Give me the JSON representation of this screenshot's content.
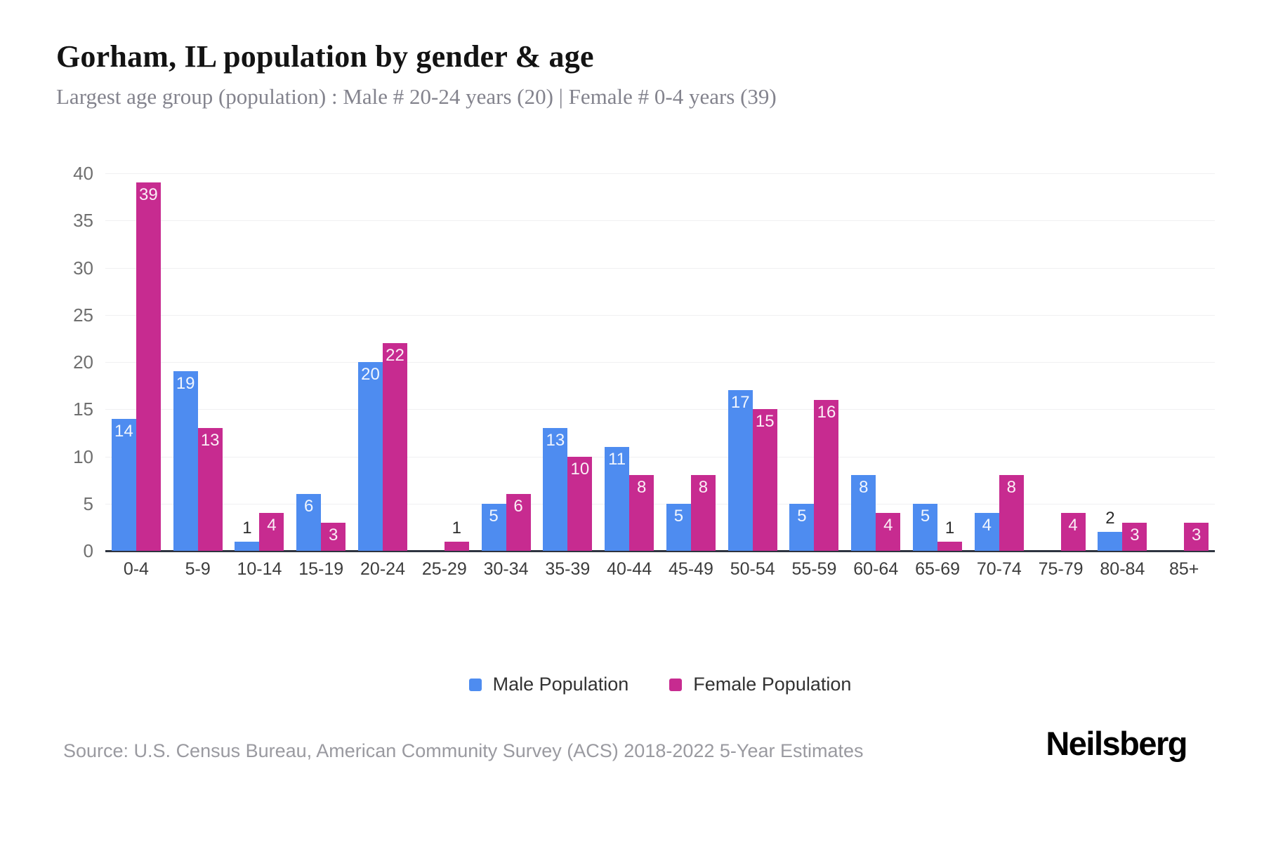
{
  "title": "Gorham, IL population by gender & age",
  "subtitle": "Largest age group (population) : Male # 20-24 years (20) | Female # 0-4 years (39)",
  "source": "Source: U.S. Census Bureau, American Community Survey (ACS) 2018-2022 5-Year Estimates",
  "brand": "Neilsberg",
  "colors": {
    "male": "#4e8cf0",
    "female": "#c72b90",
    "gridline": "#f0f0f2",
    "axis_line": "#2e3440"
  },
  "legend": {
    "items": [
      {
        "label": "Male Population",
        "color": "#4e8cf0"
      },
      {
        "label": "Female Population",
        "color": "#c72b90"
      }
    ]
  },
  "chart_data": {
    "type": "bar",
    "title": "Gorham, IL population by gender & age",
    "subtitle": "Largest age group (population) : Male # 20-24 years (20) | Female # 0-4 years (39)",
    "categories": [
      "0-4",
      "5-9",
      "10-14",
      "15-19",
      "20-24",
      "25-29",
      "30-34",
      "35-39",
      "40-44",
      "45-49",
      "50-54",
      "55-59",
      "60-64",
      "65-69",
      "70-74",
      "75-79",
      "80-84",
      "85+"
    ],
    "series": [
      {
        "name": "Male Population",
        "color": "#4e8cf0",
        "values": [
          14,
          19,
          1,
          6,
          20,
          0,
          5,
          13,
          11,
          5,
          17,
          5,
          8,
          5,
          4,
          0,
          2,
          0
        ]
      },
      {
        "name": "Female Population",
        "color": "#c72b90",
        "values": [
          39,
          13,
          4,
          3,
          22,
          1,
          6,
          10,
          8,
          8,
          15,
          16,
          4,
          1,
          8,
          4,
          3,
          3
        ]
      }
    ],
    "xlabel": "",
    "ylabel": "",
    "ylim": [
      0,
      40
    ],
    "yticks": [
      0,
      5,
      10,
      15,
      20,
      25,
      30,
      35,
      40
    ],
    "grid": true,
    "legend_position": "bottom",
    "value_labels": "inside-top (white) when value >= 3, above bar (dark) when value < 3, hidden when 0"
  }
}
